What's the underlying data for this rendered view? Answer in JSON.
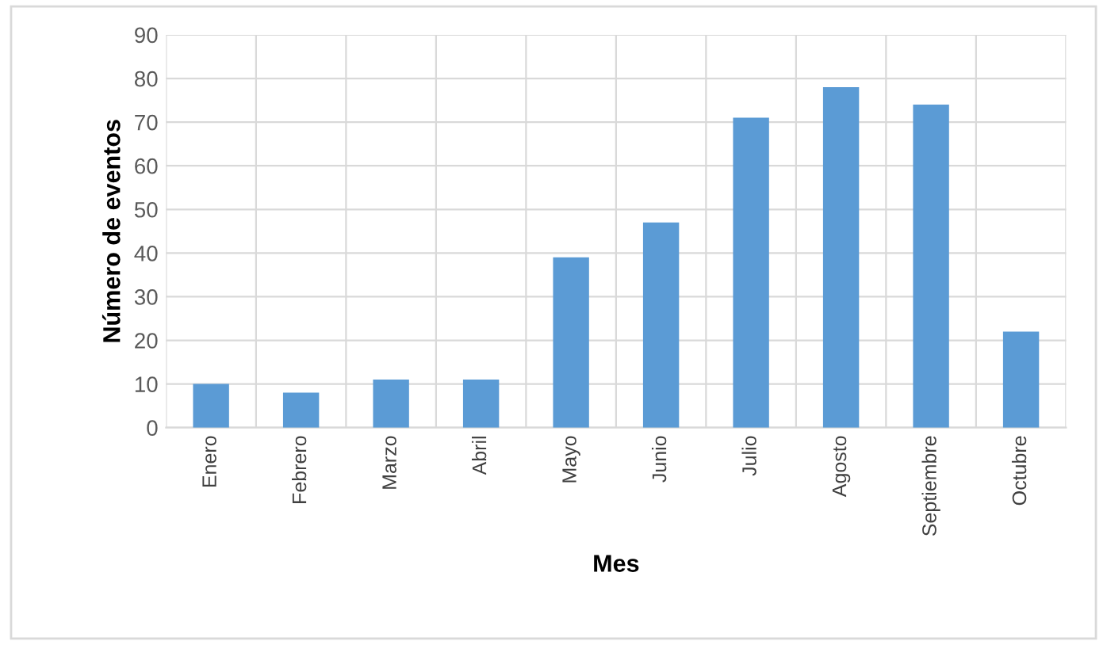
{
  "chart_data": {
    "type": "bar",
    "xlabel": "Mes",
    "ylabel": "Número de eventos",
    "categories": [
      "Enero",
      "Febrero",
      "Marzo",
      "Abril",
      "Mayo",
      "Junio",
      "Julio",
      "Agosto",
      "Septiembre",
      "Octubre"
    ],
    "values": [
      10,
      8,
      11,
      11,
      39,
      47,
      71,
      78,
      74,
      22
    ],
    "color": "#5b9bd5",
    "ylim": [
      0,
      90
    ],
    "yticks": [
      0,
      10,
      20,
      30,
      40,
      50,
      60,
      70,
      80,
      90
    ],
    "grid": true
  }
}
